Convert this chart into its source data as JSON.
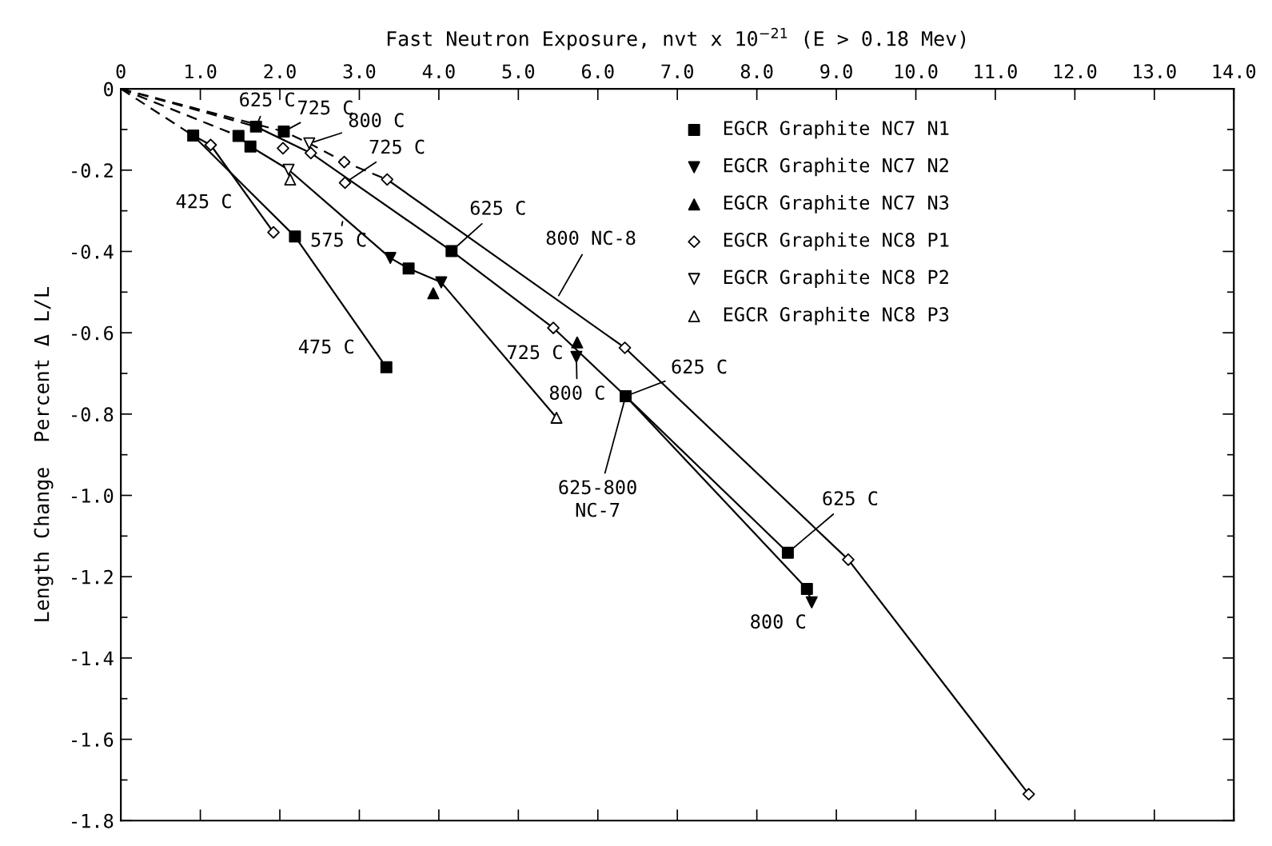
{
  "chart_data": {
    "type": "line",
    "xlabel": "Fast Neutron Exposure, nvt x 10$^{−21}$ (E > 0.18 Mev)",
    "ylabel": "Length Change  Percent Δ L/L",
    "xlim": [
      0,
      14.0
    ],
    "xticks": [
      0,
      {
        "value": 1,
        "label": "1.0"
      },
      {
        "value": 2,
        "label": "2.0"
      },
      {
        "value": 3,
        "label": "3.0"
      },
      {
        "value": 4,
        "label": "4.0"
      },
      {
        "value": 5,
        "label": "5.0"
      },
      {
        "value": 6,
        "label": "6.0"
      },
      {
        "value": 7,
        "label": "7.0"
      },
      {
        "value": 8,
        "label": "8.0"
      },
      {
        "value": 9,
        "label": "9.0"
      },
      {
        "value": 10,
        "label": "10.0"
      },
      {
        "value": 11,
        "label": "11.0"
      },
      {
        "value": 12,
        "label": "12.0"
      },
      {
        "value": 13,
        "label": "13.0"
      },
      {
        "value": 14,
        "label": "14.0"
      }
    ],
    "ylim": [
      -1.8,
      0
    ],
    "yticks": [
      0,
      {
        "value": -0.1,
        "label": null
      },
      -0.2,
      {
        "value": -0.3,
        "label": null
      },
      -0.4,
      {
        "value": -0.5,
        "label": null
      },
      -0.6,
      {
        "value": -0.7,
        "label": null
      },
      -0.8,
      {
        "value": -0.9,
        "label": null
      },
      {
        "value": -1,
        "label": "-1.0"
      },
      {
        "value": -1.1,
        "label": null
      },
      -1.2,
      {
        "value": -1.3,
        "label": null
      },
      -1.4,
      {
        "value": -1.5,
        "label": null
      },
      -1.6,
      {
        "value": -1.7,
        "label": null
      },
      -1.8
    ],
    "grid": false,
    "legend": "top right",
    "series": [
      {
        "line_style": "dashed",
        "color": "#000000",
        "x": [
          0,
          0.91
        ],
        "values": [
          0,
          -0.115
        ]
      },
      {
        "line_style": "dashed",
        "color": "#000000",
        "x": [
          0,
          1.48
        ],
        "values": [
          0,
          -0.116
        ]
      },
      {
        "line_style": "dashed",
        "color": "#000000",
        "x": [
          0,
          1.7
        ],
        "values": [
          0,
          -0.093
        ]
      },
      {
        "line_style": "dashed",
        "color": "#000000",
        "x": [
          0,
          2.05,
          2.37,
          2.81,
          3.35
        ],
        "values": [
          0,
          -0.105,
          -0.134,
          -0.18,
          -0.223
        ]
      },
      {
        "line_style": "solid",
        "color": "#000000",
        "x": [
          0.91,
          1.13,
          1.92
        ],
        "values": [
          -0.115,
          -0.138,
          -0.353
        ]
      },
      {
        "line_style": "solid",
        "color": "#000000",
        "x": [
          0.91,
          2.19,
          3.34
        ],
        "values": [
          -0.115,
          -0.363,
          -0.685
        ]
      },
      {
        "line_style": "solid",
        "color": "#000000",
        "x": [
          1.48,
          1.63,
          2.11,
          3.39,
          3.62,
          4.03,
          5.48
        ],
        "values": [
          -0.116,
          -0.142,
          -0.199,
          -0.416,
          -0.442,
          -0.476,
          -0.809
        ]
      },
      {
        "line_style": "solid",
        "color": "#000000",
        "x": [
          1.7,
          2.39,
          4.16,
          5.44,
          6.35,
          8.39
        ],
        "values": [
          -0.093,
          -0.158,
          -0.399,
          -0.588,
          -0.756,
          -1.141
        ]
      },
      {
        "line_style": "solid",
        "color": "#000000",
        "x": [
          6.35,
          8.63,
          8.69
        ],
        "values": [
          -0.756,
          -1.23,
          -1.263
        ]
      },
      {
        "line_style": "solid",
        "color": "#000000",
        "x": [
          3.35,
          6.34,
          9.15,
          11.42
        ],
        "values": [
          -0.223,
          -0.637,
          -1.158,
          -1.735
        ]
      },
      {
        "type": "scatter",
        "name": "EGCR Graphite NC7 N1",
        "marker": "square",
        "color": "#000000",
        "x": [
          0.91,
          1.48,
          1.63,
          1.7,
          2.05,
          2.19,
          3.34,
          3.62,
          4.16,
          6.35,
          8.39,
          8.63
        ],
        "values": [
          -0.115,
          -0.116,
          -0.142,
          -0.093,
          -0.105,
          -0.363,
          -0.685,
          -0.442,
          -0.399,
          -0.756,
          -1.141,
          -1.23
        ]
      },
      {
        "type": "scatter",
        "name": "EGCR Graphite NC7 N2",
        "marker": "triangle_down",
        "color": "#000000",
        "x": [
          3.39,
          4.03,
          5.73,
          8.69
        ],
        "values": [
          -0.416,
          -0.476,
          -0.659,
          -1.263
        ]
      },
      {
        "type": "scatter",
        "name": "EGCR Graphite NC7 N3",
        "marker": "triangle",
        "color": "#000000",
        "x": [
          3.93,
          5.74
        ],
        "values": [
          -0.503,
          -0.624
        ]
      },
      {
        "type": "scatter",
        "name": "EGCR Graphite NC8 P1",
        "marker": "diamond_open",
        "color": "#000000",
        "x": [
          1.13,
          1.92,
          2.04,
          2.39,
          2.81,
          2.82,
          3.35,
          5.44,
          6.34,
          9.15,
          11.42
        ],
        "values": [
          -0.138,
          -0.353,
          -0.146,
          -0.158,
          -0.18,
          -0.231,
          -0.223,
          -0.588,
          -0.637,
          -1.158,
          -1.735
        ]
      },
      {
        "type": "scatter",
        "name": "EGCR Graphite NC8 P2",
        "marker": "triangle_down_open",
        "color": "#000000",
        "x": [
          2.11,
          2.37
        ],
        "values": [
          -0.199,
          -0.134
        ]
      },
      {
        "type": "scatter",
        "name": "EGCR Graphite NC8 P3",
        "marker": "triangle_open",
        "color": "#000000",
        "x": [
          2.13,
          5.48
        ],
        "values": [
          -0.223,
          -0.809
        ]
      }
    ],
    "annotations": [
      {
        "text": "625 C",
        "x": 1.7,
        "y": -0.093
      },
      {
        "text": "725 C",
        "x": 2.05,
        "y": -0.105
      },
      {
        "text": "800 C",
        "x": 2.37,
        "y": -0.134
      },
      {
        "text": "725 C",
        "x": 2.82,
        "y": -0.231
      },
      {
        "text": "425 C",
        "x": 1.92,
        "y": -0.353
      },
      {
        "text": "575 C",
        "x": 2.8,
        "y": -0.316
      },
      {
        "text": "625 C",
        "x": 4.16,
        "y": -0.399
      },
      {
        "text": "800 NC-8",
        "x": 5.48,
        "y": -0.518
      },
      {
        "text": "475 C",
        "x": 3.34,
        "y": -0.685
      },
      "725 C",
      {
        "text": "800 C",
        "x": 5.73,
        "y": -0.659
      },
      {
        "text": "625 C",
        "x": 6.35,
        "y": -0.756
      },
      {
        "text": "625-800\nNC-7",
        "x": 6.35,
        "y": -0.756
      },
      {
        "text": "625 C",
        "x": 8.39,
        "y": -1.141
      },
      {
        "text": "800 C",
        "x": 8.69,
        "y": -1.263
      }
    ]
  }
}
